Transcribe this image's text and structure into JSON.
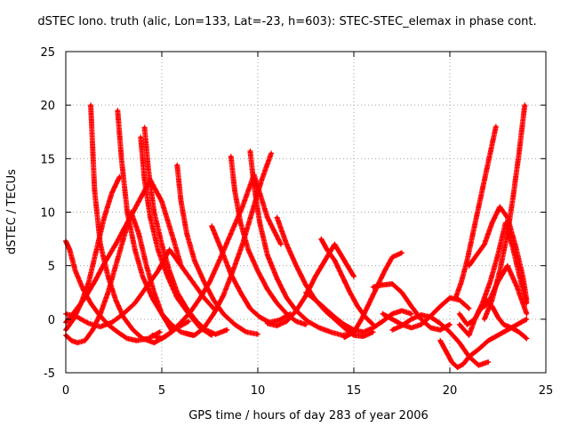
{
  "chart_data": {
    "type": "scatter",
    "title": "dSTEC Iono. truth (alic, Lon=133, Lat=-23, h=603): STEC-STEC_elemax in phase cont.",
    "xlabel": "GPS time / hours of day 283 of year 2006",
    "ylabel": "dSTEC  / TECUs",
    "xlim": [
      0,
      25
    ],
    "ylim": [
      -5,
      25
    ],
    "xticks": [
      0,
      5,
      10,
      15,
      20,
      25
    ],
    "yticks": [
      -5,
      0,
      5,
      10,
      15,
      20,
      25
    ],
    "grid": true,
    "marker": "+",
    "series_color": "#ff0000",
    "series": [
      {
        "x": [
          1.3,
          1.5,
          1.8,
          2.2,
          2.6,
          3.0,
          3.5,
          4.0,
          4.6,
          5.2,
          5.8,
          6.4
        ],
        "y": [
          20.0,
          12.0,
          7.0,
          4.0,
          1.8,
          0.2,
          -1.0,
          -1.8,
          -2.2,
          -1.6,
          -0.8,
          -0.2
        ]
      },
      {
        "x": [
          2.7,
          2.9,
          3.2,
          3.6,
          4.0,
          4.5,
          5.0,
          5.5,
          6.0,
          6.6
        ],
        "y": [
          19.5,
          15.0,
          10.0,
          6.5,
          4.0,
          2.0,
          0.5,
          -0.5,
          -1.2,
          -1.5
        ]
      },
      {
        "x": [
          4.1,
          4.3,
          4.6,
          5.0,
          5.4,
          5.8,
          6.3,
          6.8,
          7.3,
          7.8,
          8.4
        ],
        "y": [
          17.9,
          14.0,
          10.0,
          7.0,
          4.5,
          2.5,
          1.0,
          -0.2,
          -1.0,
          -1.4,
          -1.0
        ]
      },
      {
        "x": [
          3.9,
          4.1,
          4.4,
          4.8,
          5.3,
          5.8,
          6.4,
          7.0,
          7.6
        ],
        "y": [
          17.0,
          13.0,
          9.5,
          6.5,
          4.0,
          2.0,
          0.5,
          -0.8,
          -1.5
        ]
      },
      {
        "x": [
          0.0,
          0.2,
          0.5,
          0.9,
          1.3,
          1.7,
          2.2,
          2.7,
          3.2,
          3.7,
          4.3,
          4.9
        ],
        "y": [
          7.3,
          6.5,
          4.5,
          2.8,
          1.5,
          0.5,
          -0.5,
          -1.2,
          -1.8,
          -2.0,
          -1.8,
          -1.2
        ]
      },
      {
        "x": [
          0.0,
          0.3,
          0.6,
          1.0,
          1.4,
          1.8,
          2.2,
          2.6,
          3.0,
          3.4,
          3.8,
          4.2,
          4.6,
          5.0,
          5.5
        ],
        "y": [
          -1.5,
          -2.0,
          -2.2,
          -2.0,
          -1.0,
          0.5,
          2.5,
          5.0,
          7.5,
          10.0,
          8.0,
          5.0,
          2.5,
          0.5,
          -1.0
        ]
      },
      {
        "x": [
          0.0,
          0.4,
          0.8,
          1.2,
          1.6,
          2.0,
          2.4,
          2.8
        ],
        "y": [
          -1.0,
          0.0,
          1.5,
          3.5,
          6.5,
          9.5,
          11.8,
          13.3
        ]
      },
      {
        "x": [
          0.0,
          0.5,
          1.0,
          1.5,
          2.0,
          2.6,
          3.2,
          3.8,
          4.4,
          5.0,
          5.6,
          6.0
        ],
        "y": [
          -0.3,
          0.8,
          2.0,
          3.5,
          5.2,
          7.0,
          9.0,
          11.0,
          13.0,
          11.0,
          7.5,
          5.0
        ]
      },
      {
        "x": [
          0.0,
          0.6,
          1.2,
          1.8,
          2.4,
          3.0,
          3.6,
          4.2,
          4.8,
          5.4,
          6.0,
          6.6,
          7.2,
          7.8
        ],
        "y": [
          0.5,
          0.2,
          -0.4,
          -0.7,
          -0.3,
          0.5,
          1.5,
          3.0,
          4.5,
          6.5,
          5.0,
          3.5,
          2.0,
          0.8
        ]
      },
      {
        "x": [
          5.8,
          6.0,
          6.3,
          6.7,
          7.2,
          7.7,
          8.2,
          8.8,
          9.4,
          10.0
        ],
        "y": [
          14.4,
          11.0,
          8.0,
          5.5,
          3.5,
          1.8,
          0.5,
          -0.5,
          -1.2,
          -1.4
        ]
      },
      {
        "x": [
          4.5,
          5.0,
          5.5,
          6.0,
          6.5,
          7.0,
          7.5,
          8.0,
          8.6,
          9.2,
          9.8,
          10.5,
          11.2
        ],
        "y": [
          -1.5,
          -1.8,
          -1.2,
          -0.3,
          0.7,
          2.0,
          3.5,
          5.5,
          8.0,
          10.5,
          13.5,
          9.5,
          7.0
        ]
      },
      {
        "x": [
          6.2,
          6.7,
          7.2,
          7.7,
          8.2,
          8.7,
          9.2,
          9.7,
          10.2,
          10.7
        ],
        "y": [
          -1.3,
          -1.5,
          -0.8,
          0.5,
          2.2,
          4.5,
          7.0,
          10.0,
          13.0,
          15.5
        ]
      },
      {
        "x": [
          8.6,
          8.8,
          9.1,
          9.5,
          10.0,
          10.5,
          11.0,
          11.5,
          12.0,
          12.5
        ],
        "y": [
          15.2,
          12.0,
          9.0,
          6.5,
          4.5,
          2.8,
          1.5,
          0.5,
          -0.2,
          -0.5
        ]
      },
      {
        "x": [
          9.6,
          9.8,
          10.1,
          10.5,
          11.0,
          11.5,
          12.0,
          12.6,
          13.2,
          13.8,
          14.4,
          15.0
        ],
        "y": [
          15.7,
          12.5,
          9.0,
          6.0,
          3.8,
          2.0,
          0.8,
          -0.2,
          -0.8,
          -1.2,
          -1.5,
          -1.3
        ]
      },
      {
        "x": [
          7.6,
          8.1,
          8.6,
          9.1,
          9.6,
          10.1,
          10.6,
          11.1,
          11.7
        ],
        "y": [
          8.7,
          6.5,
          4.2,
          2.5,
          1.0,
          0.2,
          -0.3,
          -0.1,
          0.5
        ]
      },
      {
        "x": [
          11.0,
          11.5,
          12.0,
          12.5,
          13.0,
          13.5,
          14.0,
          14.5,
          15.0,
          15.5,
          16.0
        ],
        "y": [
          9.5,
          7.0,
          5.0,
          3.2,
          1.8,
          0.8,
          0.0,
          -0.8,
          -1.5,
          -1.6,
          -1.2
        ]
      },
      {
        "x": [
          10.5,
          11.0,
          11.5,
          12.0,
          12.5,
          13.0,
          13.5,
          14.0,
          14.5,
          15.0
        ],
        "y": [
          -0.4,
          -0.6,
          -0.2,
          0.8,
          2.2,
          4.0,
          5.5,
          7.0,
          5.5,
          4.0
        ]
      },
      {
        "x": [
          13.3,
          13.6,
          14.0,
          14.4,
          14.8,
          15.2,
          15.6,
          16.0
        ],
        "y": [
          7.5,
          6.5,
          5.5,
          4.0,
          2.5,
          1.2,
          0.2,
          -0.5
        ]
      },
      {
        "x": [
          14.5,
          15.0,
          15.4,
          15.8,
          16.2,
          16.6,
          17.0,
          17.5
        ],
        "y": [
          -1.7,
          -1.2,
          0.0,
          1.5,
          3.0,
          4.5,
          5.8,
          6.2
        ]
      },
      {
        "x": [
          12.5,
          13.0,
          13.5,
          14.0,
          14.5,
          15.0,
          15.5,
          16.0,
          16.5,
          17.0,
          17.5,
          18.0
        ],
        "y": [
          2.5,
          1.8,
          1.0,
          0.2,
          -0.5,
          -1.0,
          -1.2,
          -0.8,
          -0.2,
          0.5,
          0.8,
          0.5
        ]
      },
      {
        "x": [
          16.0,
          16.5,
          17.0,
          17.5,
          18.0,
          18.5,
          19.0,
          19.5,
          20.0
        ],
        "y": [
          3.0,
          3.2,
          3.3,
          2.5,
          1.2,
          0.0,
          -0.8,
          -1.0,
          -0.5
        ]
      },
      {
        "x": [
          16.5,
          17.0,
          17.5,
          18.0,
          18.5,
          19.0,
          19.5,
          20.0,
          20.5,
          21.0
        ],
        "y": [
          0.5,
          0.0,
          -0.5,
          -0.8,
          -0.5,
          0.3,
          1.2,
          2.0,
          1.8,
          1.0
        ]
      },
      {
        "x": [
          17.0,
          17.5,
          18.0,
          18.5,
          19.0,
          19.5,
          20.0,
          20.5,
          21.0,
          21.5,
          22.0
        ],
        "y": [
          -1.0,
          -0.6,
          0.0,
          0.4,
          0.2,
          -0.4,
          -1.2,
          -2.2,
          -3.5,
          -4.3,
          -4.0
        ]
      },
      {
        "x": [
          19.5,
          19.8,
          20.1,
          20.4,
          20.7,
          21.0,
          21.5,
          22.0,
          22.5,
          23.0,
          23.5,
          24.0
        ],
        "y": [
          -2.0,
          -3.0,
          -4.0,
          -4.5,
          -4.2,
          -3.5,
          -2.8,
          -2.0,
          -1.5,
          -1.0,
          -0.5,
          0.0
        ]
      },
      {
        "x": [
          20.5,
          21.0,
          21.3,
          21.6,
          21.9,
          22.2,
          22.5,
          22.8,
          23.2,
          23.6,
          24.0
        ],
        "y": [
          -0.5,
          -1.5,
          0.0,
          1.0,
          1.8,
          1.2,
          0.2,
          -0.5,
          -0.8,
          -1.2,
          -1.8
        ]
      },
      {
        "x": [
          20.5,
          20.9,
          21.3,
          21.7,
          22.1,
          22.5,
          22.9,
          23.3,
          23.7,
          24.0
        ],
        "y": [
          0.5,
          -0.5,
          0.0,
          1.5,
          3.5,
          6.0,
          9.0,
          6.5,
          3.5,
          1.5
        ]
      },
      {
        "x": [
          20.3,
          20.6,
          20.9,
          21.2,
          21.5,
          21.8,
          22.1,
          22.4
        ],
        "y": [
          2.0,
          3.5,
          5.5,
          8.0,
          10.5,
          13.0,
          15.5,
          18.0
        ]
      },
      {
        "x": [
          21.0,
          21.4,
          21.8,
          22.2,
          22.6,
          23.0,
          23.4,
          23.8,
          24.0
        ],
        "y": [
          5.0,
          6.0,
          7.0,
          9.0,
          10.5,
          9.5,
          7.0,
          4.0,
          1.8
        ]
      },
      {
        "x": [
          21.8,
          22.2,
          22.6,
          23.0,
          23.3,
          23.6,
          23.9
        ],
        "y": [
          0.0,
          1.8,
          4.5,
          8.0,
          11.5,
          15.5,
          20.0
        ]
      },
      {
        "x": [
          21.5,
          22.0,
          22.5,
          23.0,
          23.5,
          24.0
        ],
        "y": [
          0.8,
          1.5,
          3.5,
          5.0,
          3.0,
          0.5
        ]
      }
    ]
  }
}
